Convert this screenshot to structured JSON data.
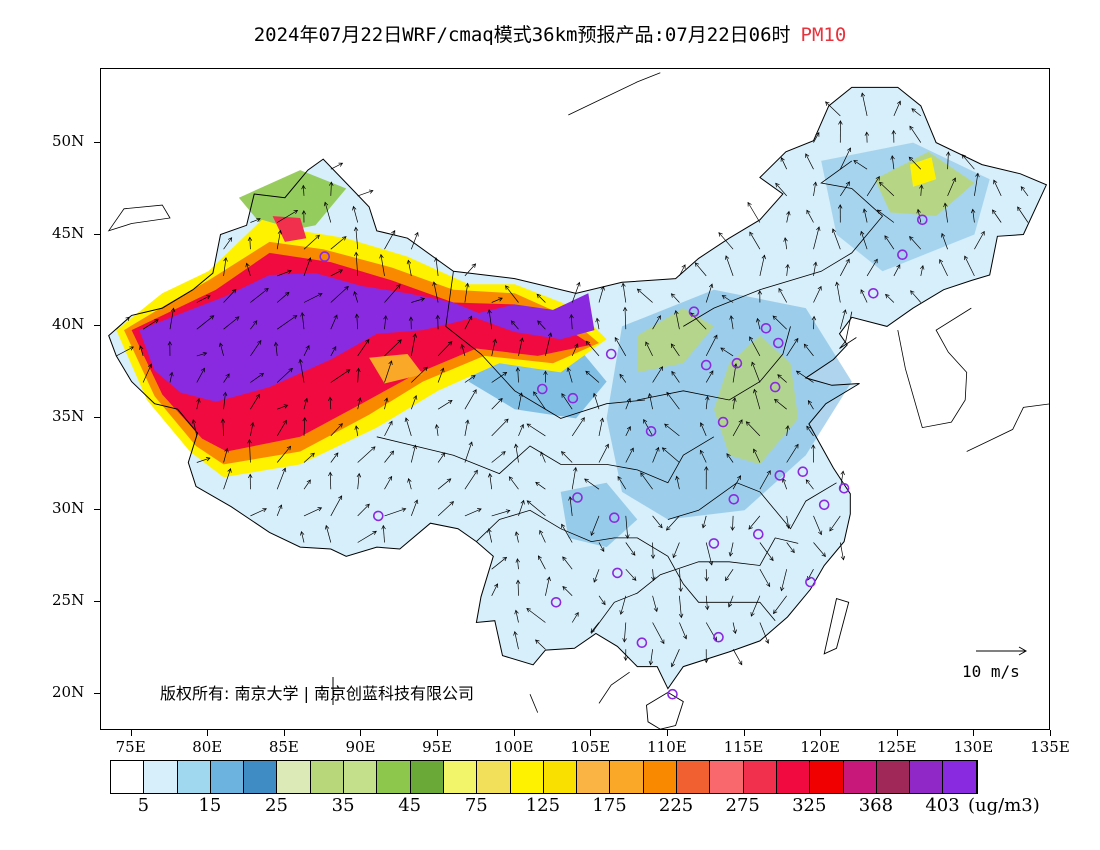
{
  "title": {
    "text": "2024年07月22日WRF/cmaq模式36km预报产品:07月22日06时",
    "pollutant": "PM10"
  },
  "axes": {
    "lat_labels": [
      {
        "lat": 50,
        "label": "50N"
      },
      {
        "lat": 45,
        "label": "45N"
      },
      {
        "lat": 40,
        "label": "40N"
      },
      {
        "lat": 35,
        "label": "35N"
      },
      {
        "lat": 30,
        "label": "30N"
      },
      {
        "lat": 25,
        "label": "25N"
      },
      {
        "lat": 20,
        "label": "20N"
      }
    ],
    "lon_labels": [
      {
        "lon": 75,
        "label": "75E"
      },
      {
        "lon": 80,
        "label": "80E"
      },
      {
        "lon": 85,
        "label": "85E"
      },
      {
        "lon": 90,
        "label": "90E"
      },
      {
        "lon": 95,
        "label": "95E"
      },
      {
        "lon": 100,
        "label": "100E"
      },
      {
        "lon": 105,
        "label": "105E"
      },
      {
        "lon": 110,
        "label": "110E"
      },
      {
        "lon": 115,
        "label": "115E"
      },
      {
        "lon": 120,
        "label": "120E"
      },
      {
        "lon": 125,
        "label": "125E"
      },
      {
        "lon": 130,
        "label": "130E"
      },
      {
        "lon": 135,
        "label": "135E"
      }
    ],
    "lon_range": [
      73,
      135
    ],
    "lat_range": [
      18,
      54
    ]
  },
  "copyright": "版权所有: 南京大学 | 南京创蓝科技有限公司",
  "wind_reference": "10 m/s",
  "colorbar": {
    "colors": [
      "#ffffff",
      "#d6effa",
      "#a0d8f0",
      "#6db3e0",
      "#3f8cc4",
      "#dceab8",
      "#b8d67a",
      "#c4e08a",
      "#8dc84c",
      "#6aa838",
      "#f2f56a",
      "#f3e05a",
      "#fff200",
      "#f9e000",
      "#f9b444",
      "#f9a828",
      "#f98a00",
      "#f06030",
      "#f8686c",
      "#f0304c",
      "#f00a40",
      "#f00000",
      "#c8187a",
      "#a02858",
      "#9028c8",
      "#8a2ae0"
    ],
    "labels": [
      "5",
      "15",
      "25",
      "35",
      "45",
      "75",
      "125",
      "175",
      "225",
      "275",
      "325",
      "368",
      "403"
    ],
    "units": "(ug/m3)"
  },
  "legend_colors": {
    "purple": "#8a2ae0",
    "red": "#f00a40",
    "orange": "#f98a00",
    "yellow": "#fff200",
    "green": "#b8d67a",
    "blue": "#6db3e0",
    "light_blue": "#d6effa"
  },
  "stations": [
    {
      "lon": 87.6,
      "lat": 43.8
    },
    {
      "lon": 91.1,
      "lat": 29.7
    },
    {
      "lon": 101.8,
      "lat": 36.6
    },
    {
      "lon": 103.8,
      "lat": 36.1
    },
    {
      "lon": 106.3,
      "lat": 38.5
    },
    {
      "lon": 111.7,
      "lat": 40.8
    },
    {
      "lon": 116.4,
      "lat": 39.9
    },
    {
      "lon": 117.2,
      "lat": 39.1
    },
    {
      "lon": 114.5,
      "lat": 38.0
    },
    {
      "lon": 112.5,
      "lat": 37.9
    },
    {
      "lon": 117.0,
      "lat": 36.7
    },
    {
      "lon": 113.6,
      "lat": 34.8
    },
    {
      "lon": 108.9,
      "lat": 34.3
    },
    {
      "lon": 104.1,
      "lat": 30.7
    },
    {
      "lon": 106.5,
      "lat": 29.6
    },
    {
      "lon": 114.3,
      "lat": 30.6
    },
    {
      "lon": 117.3,
      "lat": 31.9
    },
    {
      "lon": 118.8,
      "lat": 32.1
    },
    {
      "lon": 121.5,
      "lat": 31.2
    },
    {
      "lon": 120.2,
      "lat": 30.3
    },
    {
      "lon": 115.9,
      "lat": 28.7
    },
    {
      "lon": 113.0,
      "lat": 28.2
    },
    {
      "lon": 106.7,
      "lat": 26.6
    },
    {
      "lon": 102.7,
      "lat": 25.0
    },
    {
      "lon": 119.3,
      "lat": 26.1
    },
    {
      "lon": 113.3,
      "lat": 23.1
    },
    {
      "lon": 108.3,
      "lat": 22.8
    },
    {
      "lon": 110.3,
      "lat": 20.0
    },
    {
      "lon": 126.6,
      "lat": 45.8
    },
    {
      "lon": 125.3,
      "lat": 43.9
    },
    {
      "lon": 123.4,
      "lat": 41.8
    }
  ]
}
